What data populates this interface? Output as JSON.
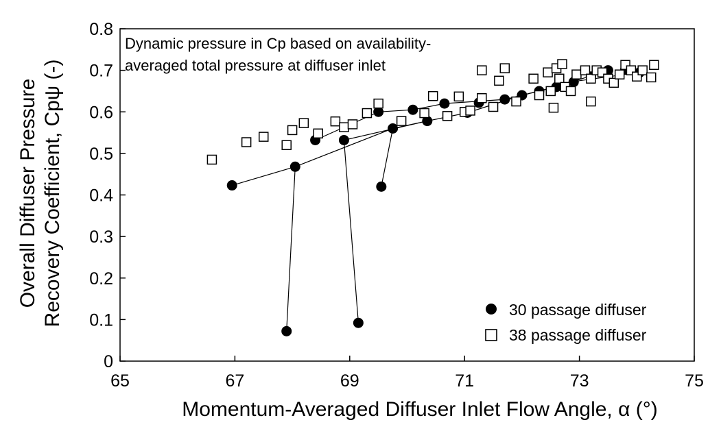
{
  "chart_data": {
    "type": "scatter",
    "title": "",
    "xlabel": "Momentum-Averaged Diffuser Inlet Flow Angle, α (°)",
    "ylabel_line1": "Overall Diffuser Pressure",
    "ylabel_line2": "Recovery Coefficient, Cpψ (-)",
    "xlim": [
      65,
      75
    ],
    "ylim": [
      0,
      0.8
    ],
    "x_ticks": [
      "65",
      "67",
      "69",
      "71",
      "73",
      "75"
    ],
    "y_ticks": [
      "0",
      "0.1",
      "0.2",
      "0.3",
      "0.4",
      "0.5",
      "0.6",
      "0.7",
      "0.8"
    ],
    "annotation_line1": "Dynamic pressure in Cp based on availability-",
    "annotation_line2": "averaged total pressure at diffuser inlet",
    "legend_position": "bottom-right",
    "grid": false,
    "series": [
      {
        "name": "30 passage diffuser",
        "marker": "filled-circle",
        "color": "#000000",
        "points": [
          [
            66.95,
            0.423
          ],
          [
            68.05,
            0.468
          ],
          [
            68.4,
            0.532
          ],
          [
            68.9,
            0.532
          ],
          [
            69.5,
            0.6
          ],
          [
            69.75,
            0.56
          ],
          [
            70.1,
            0.605
          ],
          [
            70.35,
            0.578
          ],
          [
            70.65,
            0.62
          ],
          [
            71.05,
            0.598
          ],
          [
            71.25,
            0.622
          ],
          [
            71.7,
            0.63
          ],
          [
            72.0,
            0.64
          ],
          [
            72.3,
            0.65
          ],
          [
            72.6,
            0.66
          ],
          [
            72.9,
            0.672
          ],
          [
            73.2,
            0.685
          ],
          [
            73.5,
            0.7
          ],
          [
            73.8,
            0.702
          ],
          [
            74.05,
            0.695
          ],
          [
            67.9,
            0.072
          ],
          [
            69.15,
            0.092
          ],
          [
            69.55,
            0.42
          ]
        ],
        "lines": [
          [
            [
              66.95,
              0.423
            ],
            [
              68.05,
              0.468
            ],
            [
              69.75,
              0.56
            ],
            [
              70.35,
              0.578
            ],
            [
              71.05,
              0.598
            ],
            [
              72.0,
              0.64
            ],
            [
              73.0,
              0.675
            ],
            [
              74.05,
              0.695
            ]
          ],
          [
            [
              68.4,
              0.532
            ],
            [
              69.5,
              0.6
            ],
            [
              70.1,
              0.605
            ],
            [
              70.65,
              0.62
            ],
            [
              71.7,
              0.63
            ],
            [
              72.6,
              0.66
            ],
            [
              73.5,
              0.7
            ]
          ],
          [
            [
              68.9,
              0.532
            ],
            [
              70.35,
              0.578
            ]
          ],
          [
            [
              68.05,
              0.468
            ],
            [
              67.9,
              0.072
            ]
          ],
          [
            [
              68.9,
              0.532
            ],
            [
              69.15,
              0.092
            ]
          ],
          [
            [
              69.75,
              0.56
            ],
            [
              69.55,
              0.42
            ]
          ]
        ]
      },
      {
        "name": "38 passage diffuser",
        "marker": "open-square",
        "color": "#000000",
        "points": [
          [
            66.6,
            0.485
          ],
          [
            67.2,
            0.527
          ],
          [
            67.5,
            0.54
          ],
          [
            67.9,
            0.52
          ],
          [
            68.0,
            0.556
          ],
          [
            68.2,
            0.573
          ],
          [
            68.45,
            0.548
          ],
          [
            68.75,
            0.577
          ],
          [
            68.9,
            0.563
          ],
          [
            69.05,
            0.57
          ],
          [
            69.3,
            0.597
          ],
          [
            69.5,
            0.62
          ],
          [
            69.9,
            0.578
          ],
          [
            70.3,
            0.597
          ],
          [
            70.45,
            0.638
          ],
          [
            70.7,
            0.59
          ],
          [
            70.9,
            0.637
          ],
          [
            71.0,
            0.6
          ],
          [
            71.1,
            0.603
          ],
          [
            71.3,
            0.7
          ],
          [
            71.3,
            0.633
          ],
          [
            71.5,
            0.612
          ],
          [
            71.6,
            0.675
          ],
          [
            71.7,
            0.705
          ],
          [
            71.9,
            0.625
          ],
          [
            72.2,
            0.68
          ],
          [
            72.3,
            0.64
          ],
          [
            72.45,
            0.695
          ],
          [
            72.5,
            0.65
          ],
          [
            72.55,
            0.61
          ],
          [
            72.6,
            0.705
          ],
          [
            72.65,
            0.68
          ],
          [
            72.7,
            0.715
          ],
          [
            72.75,
            0.66
          ],
          [
            72.85,
            0.65
          ],
          [
            72.95,
            0.69
          ],
          [
            73.1,
            0.7
          ],
          [
            73.2,
            0.68
          ],
          [
            73.3,
            0.7
          ],
          [
            73.2,
            0.625
          ],
          [
            73.4,
            0.695
          ],
          [
            73.5,
            0.68
          ],
          [
            73.6,
            0.67
          ],
          [
            73.7,
            0.69
          ],
          [
            73.8,
            0.713
          ],
          [
            73.9,
            0.7
          ],
          [
            74.0,
            0.685
          ],
          [
            74.1,
            0.7
          ],
          [
            74.25,
            0.683
          ],
          [
            74.3,
            0.713
          ]
        ]
      }
    ]
  }
}
